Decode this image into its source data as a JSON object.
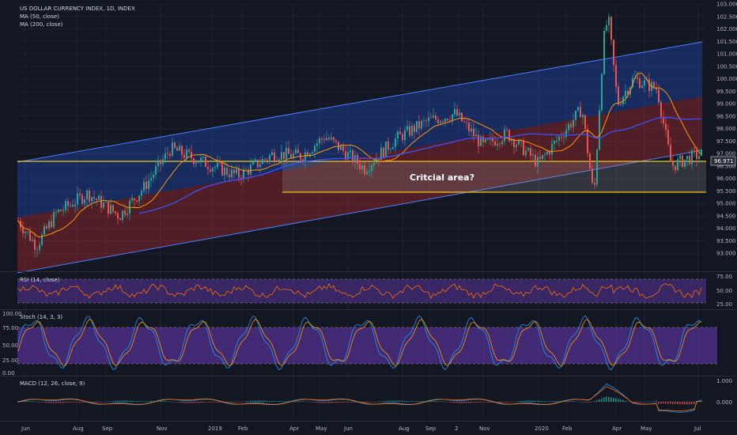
{
  "legend": {
    "title": "US DOLLAR CURRENCY INDEX, 1D, INDEX",
    "ma50": "MA (50, close)",
    "ma200": "MA (200, close)"
  },
  "annotation": "Critcial area?",
  "price_tag": "96.971",
  "colors": {
    "background": "#131722",
    "channel_upper": "#2962ff",
    "channel_lower": "#d32f2f",
    "critical_line": "#f5c518",
    "ma50": "#ff9800",
    "ma200": "#3f51ff",
    "rsi_bg": "#673ab7",
    "rsi_line": "#ff6d00",
    "stoch_k": "#2196f3",
    "stoch_d": "#ff9800",
    "macd": "#2196f3",
    "signal": "#ff6d00"
  },
  "price_axis": [
    "103.000",
    "102.500",
    "102.000",
    "101.500",
    "101.000",
    "100.500",
    "100.000",
    "99.500",
    "99.000",
    "98.500",
    "98.000",
    "97.500",
    "97.000",
    "96.500",
    "96.000",
    "95.500",
    "95.000",
    "94.500",
    "94.000",
    "93.500",
    "93.000"
  ],
  "time_axis": [
    "Jun",
    "Aug",
    "Sep",
    "Nov",
    "2019",
    "Feb",
    "Apr",
    "May",
    "Jun",
    "Aug",
    "Sep",
    "2",
    "Nov",
    "2020",
    "Feb",
    "Apr",
    "May",
    "Jul"
  ],
  "panes": {
    "rsi": {
      "label": "RSI (14, close)",
      "ticks": [
        "75.00",
        "50.00",
        "25.00"
      ]
    },
    "stoch": {
      "label": "Stoch (14, 3, 3)",
      "ticks": [
        "100.00",
        "75.00",
        "50.00",
        "25.00",
        "0.00"
      ]
    },
    "macd": {
      "label": "MACD (12, 26, close, 9)",
      "ticks": [
        "1.000",
        "0.000"
      ]
    }
  },
  "chart_data": {
    "type": "candlestick",
    "title": "US DOLLAR CURRENCY INDEX, 1D, INDEX",
    "ylim": [
      92.5,
      103.0
    ],
    "critical_area": [
      95.7,
      96.95
    ],
    "last_price": 96.971
  }
}
